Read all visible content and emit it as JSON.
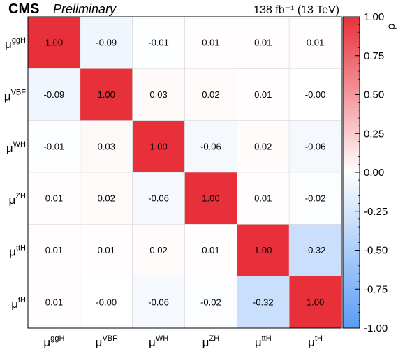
{
  "header": {
    "experiment": "CMS",
    "status": "Preliminary",
    "luminosity": "138 fb⁻¹ (13 TeV)"
  },
  "chart_data": {
    "type": "heatmap",
    "title": "",
    "row_labels": [
      {
        "base": "μ",
        "sup": "ggH"
      },
      {
        "base": "μ",
        "sup": "VBF"
      },
      {
        "base": "μ",
        "sup": "WH"
      },
      {
        "base": "μ",
        "sup": "ZH"
      },
      {
        "base": "μ",
        "sup": "ttH"
      },
      {
        "base": "μ",
        "sup": "tH"
      }
    ],
    "col_labels": [
      {
        "base": "μ",
        "sup": "ggH"
      },
      {
        "base": "μ",
        "sup": "VBF"
      },
      {
        "base": "μ",
        "sup": "WH"
      },
      {
        "base": "μ",
        "sup": "ZH"
      },
      {
        "base": "μ",
        "sup": "ttH"
      },
      {
        "base": "μ",
        "sup": "tH"
      }
    ],
    "matrix": [
      [
        1.0,
        -0.09,
        -0.01,
        0.01,
        0.01,
        0.01
      ],
      [
        -0.09,
        1.0,
        0.03,
        0.02,
        0.01,
        -0.0
      ],
      [
        -0.01,
        0.03,
        1.0,
        -0.06,
        0.02,
        -0.06
      ],
      [
        0.01,
        0.02,
        -0.06,
        1.0,
        0.01,
        -0.02
      ],
      [
        0.01,
        0.01,
        0.02,
        0.01,
        1.0,
        -0.32
      ],
      [
        0.01,
        -0.0,
        -0.06,
        -0.02,
        -0.32,
        1.0
      ]
    ],
    "cell_labels": [
      [
        "1.00",
        "-0.09",
        "-0.01",
        "0.01",
        "0.01",
        "0.01"
      ],
      [
        "-0.09",
        "1.00",
        "0.03",
        "0.02",
        "0.01",
        "-0.00"
      ],
      [
        "-0.01",
        "0.03",
        "1.00",
        "-0.06",
        "0.02",
        "-0.06"
      ],
      [
        "0.01",
        "0.02",
        "-0.06",
        "1.00",
        "0.01",
        "-0.02"
      ],
      [
        "0.01",
        "0.01",
        "0.02",
        "0.01",
        "1.00",
        "-0.32"
      ],
      [
        "0.01",
        "-0.00",
        "-0.06",
        "-0.02",
        "-0.32",
        "1.00"
      ]
    ],
    "zlabel": "ρ",
    "zlim": [
      -1.0,
      1.0
    ],
    "zticks": [
      "1.00",
      "0.75",
      "0.50",
      "0.25",
      "0.00",
      "-0.25",
      "-0.50",
      "-0.75",
      "-1.00"
    ],
    "colors": {
      "positive": "#e8303a",
      "zero": "#ffffff",
      "negative": "#5a9cf5"
    },
    "grid": true
  }
}
